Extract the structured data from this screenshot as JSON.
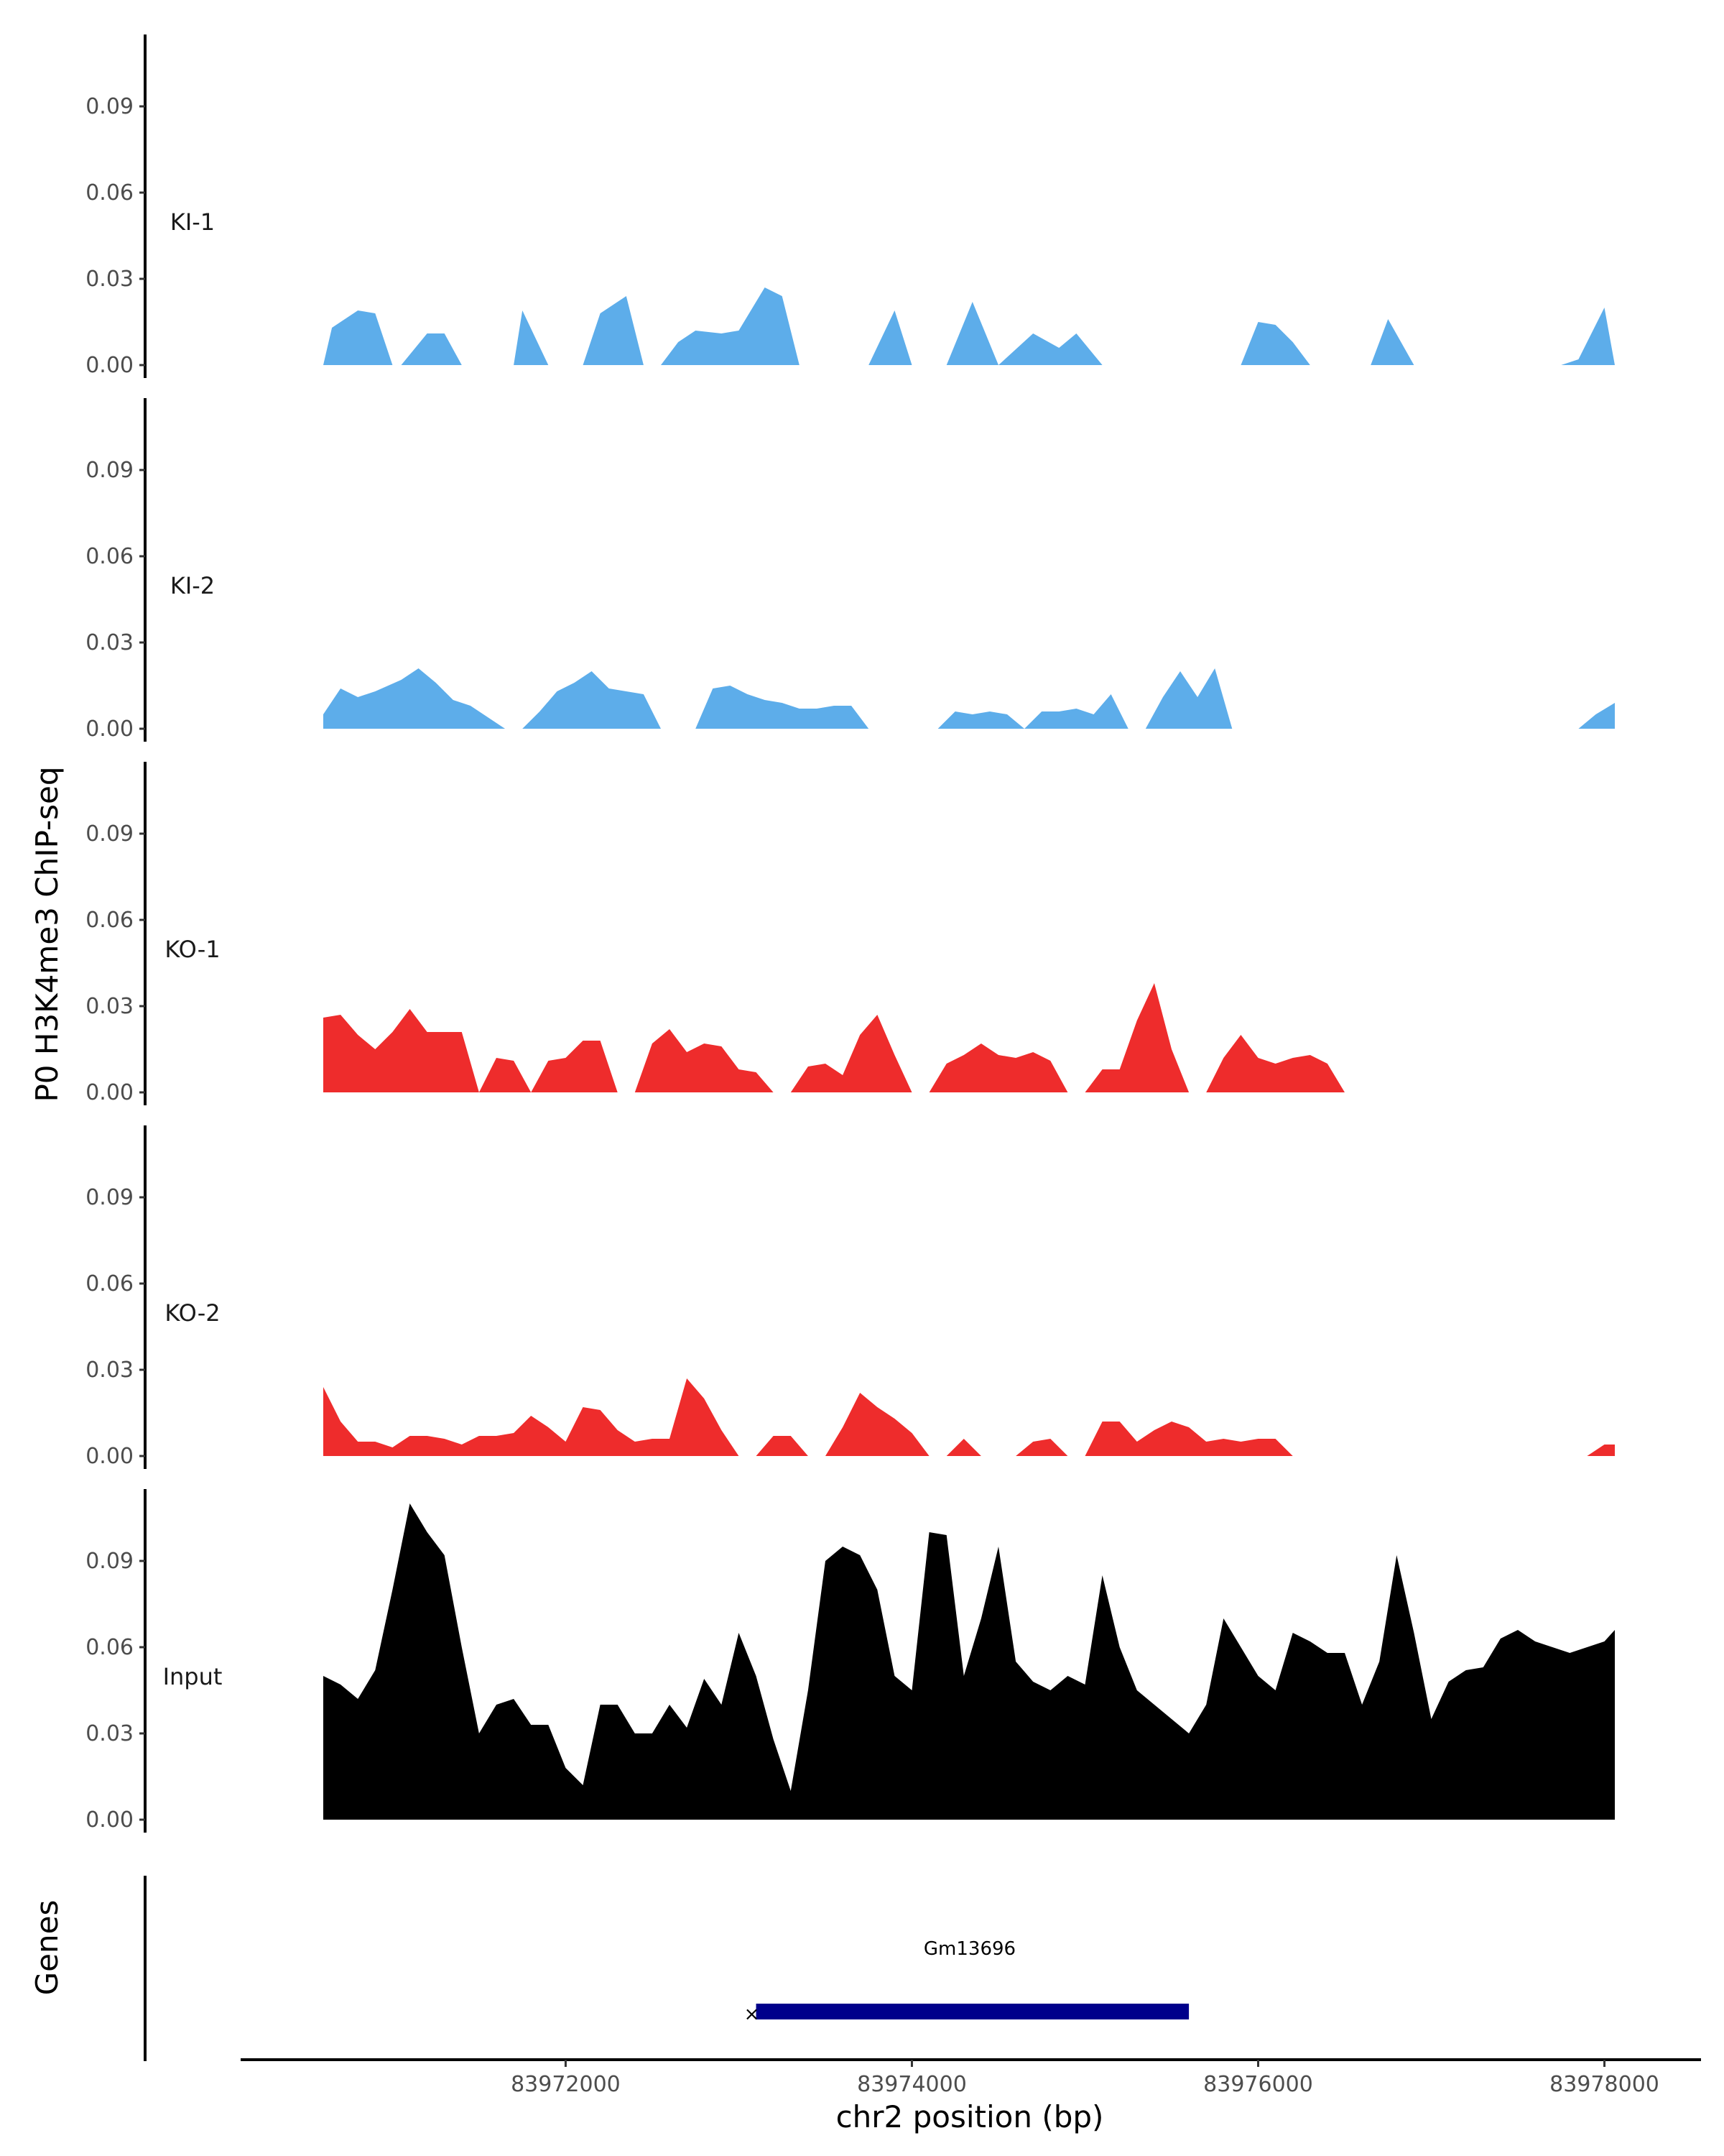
{
  "chart_data": {
    "type": "area",
    "ylabel": "P0 H3K4me3 ChIP-seq",
    "xlabel": "chr2 position (bp)",
    "xlim": [
      83970600,
      83978060
    ],
    "ylim": [
      0,
      0.114
    ],
    "yticks": [
      0,
      0.03,
      0.06,
      0.09
    ],
    "ytick_labels": [
      "0.00",
      "0.03",
      "0.06",
      "0.09"
    ],
    "xticks": [
      83972000,
      83974000,
      83976000,
      83978000
    ],
    "xtick_labels": [
      "83972000",
      "83974000",
      "83976000",
      "83978000"
    ],
    "tracks": [
      {
        "name": "KI-1",
        "color": "#5DADEA",
        "x": [
          83970600,
          83970650,
          83970700,
          83970800,
          83970900,
          83971000,
          83971050,
          83971200,
          83971300,
          83971400,
          83971450,
          83971700,
          83971750,
          83971900,
          83972000,
          83971950,
          83972100,
          83972200,
          83972350,
          83972450,
          83972550,
          83972650,
          83972750,
          83972900,
          83973000,
          83973150,
          83973250,
          83973350,
          83973450,
          83973550,
          83973650,
          83973750,
          83973900,
          83974000,
          83974200,
          83974350,
          83974500,
          83974700,
          83974850,
          83974950,
          83975100,
          83975200,
          83975350,
          83975450,
          83975550,
          83975650,
          83975800,
          83975900,
          83976000,
          83976100,
          83976200,
          83976300,
          83976400,
          83976550,
          83976650,
          83976750,
          83976900,
          83977000,
          83977100,
          83977200,
          83977300,
          83977400,
          83977550,
          83977650,
          83977750,
          83977850,
          83978000,
          83978060
        ],
        "y": [
          0,
          0.013,
          0.015,
          0.019,
          0.018,
          0,
          0,
          0.011,
          0.011,
          0,
          0,
          0,
          0.019,
          0,
          0,
          0,
          0,
          0.018,
          0.024,
          0,
          0,
          0.008,
          0.012,
          0.011,
          0.012,
          0.027,
          0.024,
          0,
          0,
          0,
          0,
          0,
          0.019,
          0,
          0,
          0.022,
          0,
          0.011,
          0.006,
          0.011,
          0,
          0,
          0,
          0,
          0,
          0,
          0,
          0,
          0.015,
          0.014,
          0.008,
          0,
          0,
          0,
          0,
          0.016,
          0,
          0,
          0,
          0,
          0,
          0,
          0,
          0,
          0,
          0.002,
          0.02,
          0
        ]
      },
      {
        "name": "KI-2",
        "color": "#5DADEA",
        "x": [
          83970600,
          83970700,
          83970800,
          83970900,
          83971050,
          83971150,
          83971250,
          83971350,
          83971450,
          83971550,
          83971650,
          83971750,
          83971850,
          83971950,
          83972050,
          83972150,
          83972250,
          83972350,
          83972450,
          83972550,
          83972650,
          83972750,
          83972850,
          83972950,
          83973050,
          83973150,
          83973250,
          83973350,
          83973450,
          83973550,
          83973650,
          83973750,
          83973850,
          83973950,
          83974050,
          83974150,
          83974250,
          83974350,
          83974450,
          83974550,
          83974650,
          83974750,
          83974850,
          83974950,
          83975050,
          83975150,
          83975250,
          83975350,
          83975450,
          83975550,
          83975650,
          83975750,
          83975850,
          83975950,
          83976050,
          83976150,
          83976250,
          83976350,
          83976450,
          83976550,
          83976650,
          83976750,
          83976850,
          83976950,
          83977050,
          83977150,
          83977250,
          83977350,
          83977450,
          83977550,
          83977650,
          83977750,
          83977850,
          83977950,
          83978060
        ],
        "y": [
          0.005,
          0.014,
          0.011,
          0.013,
          0.017,
          0.021,
          0.016,
          0.01,
          0.008,
          0.004,
          0,
          0,
          0.006,
          0.013,
          0.016,
          0.02,
          0.014,
          0.013,
          0.012,
          0,
          0,
          0,
          0.014,
          0.015,
          0.012,
          0.01,
          0.009,
          0.007,
          0.007,
          0.008,
          0.008,
          0,
          0,
          0,
          0,
          0,
          0.006,
          0.005,
          0.006,
          0.005,
          0,
          0.006,
          0.006,
          0.007,
          0.005,
          0.012,
          0,
          0,
          0.011,
          0.02,
          0.011,
          0.021,
          0,
          0,
          0,
          0,
          0,
          0,
          0,
          0,
          0,
          0,
          0,
          0,
          0,
          0,
          0,
          0,
          0,
          0,
          0,
          0,
          0,
          0.005,
          0.009
        ]
      },
      {
        "name": "KO-1",
        "color": "#EE2C2C",
        "x": [
          83970600,
          83970700,
          83970800,
          83970900,
          83971000,
          83971100,
          83971200,
          83971300,
          83971400,
          83971500,
          83971600,
          83971700,
          83971800,
          83971900,
          83972000,
          83972100,
          83972200,
          83972300,
          83972400,
          83972500,
          83972600,
          83972700,
          83972800,
          83972900,
          83973000,
          83973100,
          83973200,
          83973300,
          83973400,
          83973500,
          83973600,
          83973700,
          83973800,
          83973900,
          83974000,
          83974100,
          83974200,
          83974300,
          83974400,
          83974500,
          83974600,
          83974700,
          83974800,
          83974900,
          83975000,
          83975100,
          83975200,
          83975300,
          83975400,
          83975500,
          83975600,
          83975700,
          83975800,
          83975900,
          83976000,
          83976100,
          83976200,
          83976300,
          83976400,
          83976500,
          83976600,
          83976700,
          83976800,
          83976900,
          83977000,
          83977100,
          83977200,
          83977300,
          83977400,
          83977500,
          83977600,
          83977700
        ],
        "y": [
          0.026,
          0.027,
          0.02,
          0.015,
          0.021,
          0.029,
          0.021,
          0.021,
          0.021,
          0,
          0.012,
          0.011,
          0,
          0.011,
          0.012,
          0.018,
          0.018,
          0,
          0,
          0.017,
          0.022,
          0.014,
          0.017,
          0.016,
          0.008,
          0.007,
          0,
          0,
          0.009,
          0.01,
          0.006,
          0.02,
          0.027,
          0.013,
          0,
          0,
          0.01,
          0.013,
          0.017,
          0.013,
          0.012,
          0.014,
          0.011,
          0,
          0,
          0.008,
          0.008,
          0.025,
          0.038,
          0.015,
          0,
          0,
          0.012,
          0.02,
          0.012,
          0.01,
          0.012,
          0.013,
          0.01,
          0,
          0,
          0,
          0,
          0,
          0,
          0,
          0,
          0,
          0,
          0,
          0,
          0
        ]
      },
      {
        "name": "KO-2",
        "color": "#EE2C2C",
        "x": [
          83970600,
          83970700,
          83970800,
          83970900,
          83971000,
          83971100,
          83971200,
          83971300,
          83971400,
          83971500,
          83971600,
          83971700,
          83971800,
          83971900,
          83972000,
          83972100,
          83972200,
          83972300,
          83972400,
          83972500,
          83972600,
          83972700,
          83972800,
          83972900,
          83973000,
          83973100,
          83973200,
          83973300,
          83973400,
          83973500,
          83973600,
          83973700,
          83973800,
          83973900,
          83974000,
          83974100,
          83974200,
          83974300,
          83974400,
          83974500,
          83974600,
          83974700,
          83974800,
          83974900,
          83975000,
          83975100,
          83975200,
          83975300,
          83975400,
          83975500,
          83975600,
          83975700,
          83975800,
          83975900,
          83976000,
          83976100,
          83976200,
          83976300,
          83976400,
          83976500,
          83976600,
          83976700,
          83976800,
          83976900,
          83977000,
          83977100,
          83977200,
          83977300,
          83977400,
          83977500,
          83977600,
          83977700,
          83977800,
          83977900,
          83978000,
          83978060
        ],
        "y": [
          0.024,
          0.012,
          0.005,
          0.005,
          0.003,
          0.007,
          0.007,
          0.006,
          0.004,
          0.007,
          0.007,
          0.008,
          0.014,
          0.01,
          0.005,
          0.017,
          0.016,
          0.009,
          0.005,
          0.006,
          0.006,
          0.027,
          0.02,
          0.009,
          0,
          0,
          0.007,
          0.007,
          0,
          0,
          0.01,
          0.022,
          0.017,
          0.013,
          0.008,
          0,
          0,
          0.006,
          0,
          0,
          0,
          0.005,
          0.006,
          0,
          0,
          0.012,
          0.012,
          0.005,
          0.009,
          0.012,
          0.01,
          0.005,
          0.006,
          0.005,
          0.006,
          0.006,
          0,
          0,
          0,
          0,
          0,
          0,
          0,
          0,
          0,
          0,
          0,
          0,
          0,
          0,
          0,
          0,
          0,
          0,
          0.004,
          0.004
        ]
      },
      {
        "name": "Input",
        "color": "#000000",
        "x": [
          83970600,
          83970700,
          83970800,
          83970900,
          83971000,
          83971100,
          83971200,
          83971300,
          83971400,
          83971500,
          83971600,
          83971700,
          83971800,
          83971900,
          83972000,
          83972100,
          83972200,
          83972300,
          83972400,
          83972500,
          83972600,
          83972700,
          83972800,
          83972900,
          83973000,
          83973100,
          83973200,
          83973300,
          83973400,
          83973500,
          83973600,
          83973700,
          83973800,
          83973900,
          83974000,
          83974100,
          83974200,
          83974300,
          83974400,
          83974500,
          83974600,
          83974700,
          83974800,
          83974900,
          83975000,
          83975100,
          83975200,
          83975300,
          83975400,
          83975500,
          83975600,
          83975700,
          83975800,
          83975900,
          83976000,
          83976100,
          83976200,
          83976300,
          83976400,
          83976500,
          83976600,
          83976700,
          83976800,
          83976900,
          83977000,
          83977100,
          83977200,
          83977300,
          83977400,
          83977500,
          83977600,
          83977700,
          83977800,
          83977900,
          83978000,
          83978060
        ],
        "y": [
          0.05,
          0.047,
          0.042,
          0.052,
          0.08,
          0.11,
          0.1,
          0.092,
          0.06,
          0.03,
          0.04,
          0.042,
          0.033,
          0.033,
          0.018,
          0.012,
          0.04,
          0.04,
          0.03,
          0.03,
          0.04,
          0.032,
          0.049,
          0.04,
          0.065,
          0.05,
          0.028,
          0.01,
          0.045,
          0.09,
          0.095,
          0.092,
          0.08,
          0.05,
          0.045,
          0.1,
          0.099,
          0.05,
          0.07,
          0.095,
          0.055,
          0.048,
          0.045,
          0.05,
          0.047,
          0.085,
          0.06,
          0.045,
          0.04,
          0.035,
          0.03,
          0.04,
          0.07,
          0.06,
          0.05,
          0.045,
          0.065,
          0.062,
          0.058,
          0.058,
          0.04,
          0.055,
          0.092,
          0.065,
          0.035,
          0.048,
          0.052,
          0.053,
          0.063,
          0.066,
          0.062,
          0.06,
          0.058,
          0.06,
          0.062,
          0.066
        ]
      }
    ],
    "genes_track": {
      "label": "Genes",
      "gene": {
        "name": "Gm13696",
        "start": 83973100,
        "end": 83975600,
        "strand": "-",
        "color": "#00008B"
      }
    }
  }
}
